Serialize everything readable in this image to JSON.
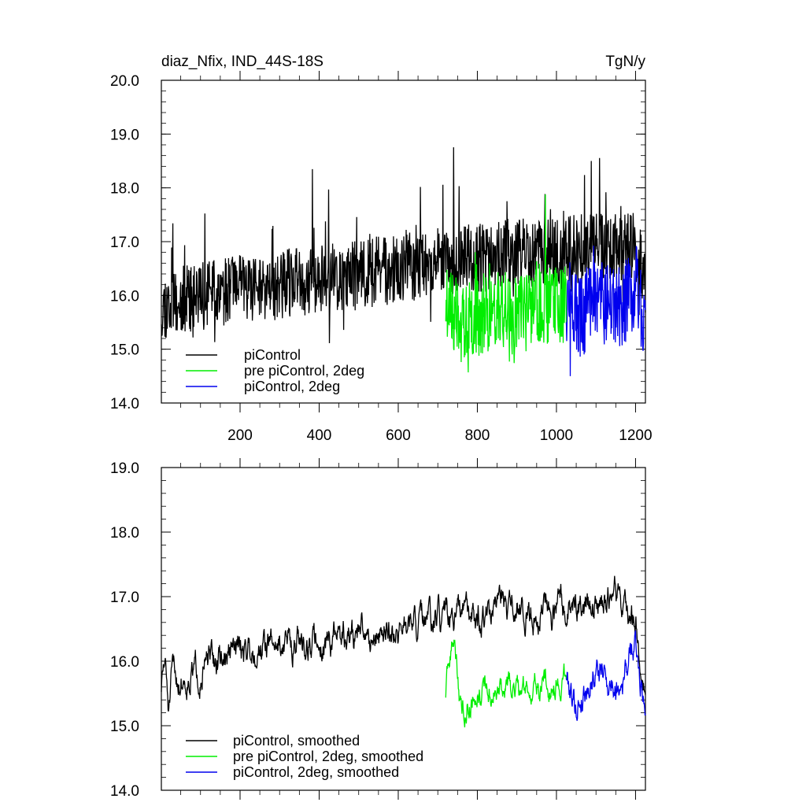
{
  "chart_data": [
    {
      "type": "line",
      "title": "diaz_Nfix, IND_44S-18S",
      "units": "TgN/y",
      "xlabel": "",
      "ylabel": "",
      "xlim": [
        1,
        1225
      ],
      "ylim": [
        14.0,
        20.0
      ],
      "x_ticks": [
        200,
        400,
        600,
        800,
        1000,
        1200
      ],
      "y_ticks": [
        "14.0",
        "15.0",
        "16.0",
        "17.0",
        "18.0",
        "19.0",
        "20.0"
      ],
      "grid": false,
      "legend": "bottom-left",
      "series": [
        {
          "name": "piControl",
          "color": "#000000",
          "x_start": 1,
          "x_end": 1225,
          "knots_x": [
            1,
            100,
            200,
            300,
            400,
            500,
            600,
            700,
            800,
            900,
            1000,
            1100,
            1200,
            1225
          ],
          "knots_y": [
            15.8,
            16.0,
            16.1,
            16.2,
            16.3,
            16.4,
            16.5,
            16.6,
            16.7,
            16.8,
            16.8,
            16.9,
            16.9,
            16.3
          ],
          "noise": 0.65,
          "seed": 11
        },
        {
          "name": "pre piControl, 2deg",
          "color": "#00ee00",
          "x_start": 720,
          "x_end": 1025,
          "knots_x": [
            720,
            760,
            800,
            850,
            900,
            950,
            1000,
            1025
          ],
          "knots_y": [
            15.9,
            15.5,
            15.6,
            15.8,
            15.7,
            15.9,
            15.8,
            15.9
          ],
          "noise": 0.75,
          "seed": 23
        },
        {
          "name": "piControl, 2deg",
          "color": "#0000ee",
          "x_start": 1025,
          "x_end": 1225,
          "knots_x": [
            1025,
            1060,
            1100,
            1150,
            1200,
            1225
          ],
          "knots_y": [
            15.9,
            15.6,
            15.9,
            15.7,
            16.2,
            15.5
          ],
          "noise": 0.8,
          "seed": 37
        }
      ]
    },
    {
      "type": "line",
      "title": "",
      "xlabel": "",
      "ylabel": "",
      "xlim": [
        1,
        1225
      ],
      "ylim": [
        14.0,
        19.0
      ],
      "x_ticks": [
        200,
        400,
        600,
        800,
        1000,
        1200
      ],
      "y_ticks": [
        "14.0",
        "15.0",
        "16.0",
        "17.0",
        "18.0",
        "19.0"
      ],
      "grid": false,
      "legend": "bottom-left",
      "series": [
        {
          "name": "piControl, smoothed",
          "color": "#000000",
          "x_start": 1,
          "x_end": 1225,
          "knots_x": [
            1,
            10,
            20,
            30,
            50,
            100,
            150,
            200,
            300,
            400,
            500,
            600,
            700,
            800,
            900,
            1000,
            1100,
            1150,
            1200,
            1225
          ],
          "knots_y": [
            15.6,
            16.0,
            15.2,
            15.8,
            15.7,
            15.9,
            16.0,
            16.2,
            16.3,
            16.3,
            16.4,
            16.5,
            16.6,
            16.7,
            16.8,
            16.8,
            16.9,
            17.0,
            16.6,
            15.4
          ],
          "noise": 0.35,
          "seed": 51
        },
        {
          "name": "pre piControl, 2deg, smoothed",
          "color": "#00ee00",
          "x_start": 720,
          "x_end": 1025,
          "knots_x": [
            720,
            740,
            760,
            800,
            850,
            900,
            950,
            1000,
            1025
          ],
          "knots_y": [
            15.5,
            16.4,
            15.2,
            15.6,
            15.5,
            15.6,
            15.6,
            15.7,
            15.8
          ],
          "noise": 0.3,
          "seed": 63
        },
        {
          "name": "piControl, 2deg, smoothed",
          "color": "#0000ee",
          "x_start": 1025,
          "x_end": 1225,
          "knots_x": [
            1025,
            1050,
            1100,
            1150,
            1200,
            1225
          ],
          "knots_y": [
            15.8,
            15.3,
            15.9,
            15.6,
            16.2,
            15.3
          ],
          "noise": 0.35,
          "seed": 79
        }
      ]
    }
  ]
}
